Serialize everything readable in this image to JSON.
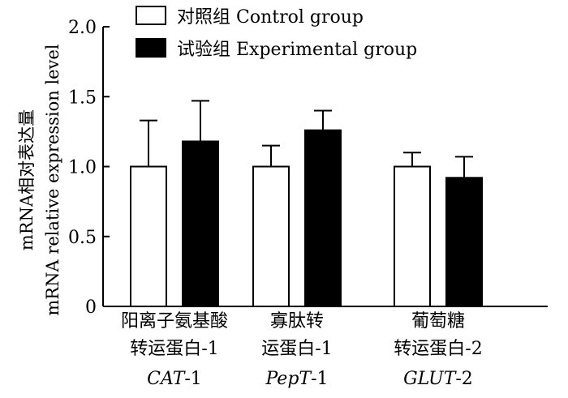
{
  "chart_data": {
    "type": "bar",
    "ylabel_zh": "mRNA相对表达量",
    "ylabel_en": "mRNA relative expression level",
    "ylim": [
      0,
      2.0
    ],
    "yticks": [
      "0",
      "0.5",
      "1.0",
      "1.5",
      "2.0"
    ],
    "ytick_values": [
      0,
      0.5,
      1.0,
      1.5,
      2.0
    ],
    "categories": [
      {
        "zh_line1": "阳离子氨基酸",
        "zh_line2": "转运蛋白-1",
        "gene_italic": "CAT",
        "gene_suffix": "-1"
      },
      {
        "zh_line1": "寡肽转",
        "zh_line2": "运蛋白-1",
        "gene_italic": "PepT",
        "gene_suffix": "-1"
      },
      {
        "zh_line1": "葡萄糖",
        "zh_line2": "转运蛋白-2",
        "gene_italic": "GLUT",
        "gene_suffix": "-2"
      }
    ],
    "series": [
      {
        "name": "对照组 Control group",
        "fill": "#ffffff",
        "values": [
          1.0,
          1.0,
          1.0
        ],
        "errors": [
          0.33,
          0.15,
          0.1
        ]
      },
      {
        "name": "试验组 Experimental group",
        "fill": "#000000",
        "values": [
          1.18,
          1.26,
          0.92
        ],
        "errors": [
          0.29,
          0.14,
          0.15
        ]
      }
    ],
    "grid": false,
    "legend_position": "top"
  }
}
